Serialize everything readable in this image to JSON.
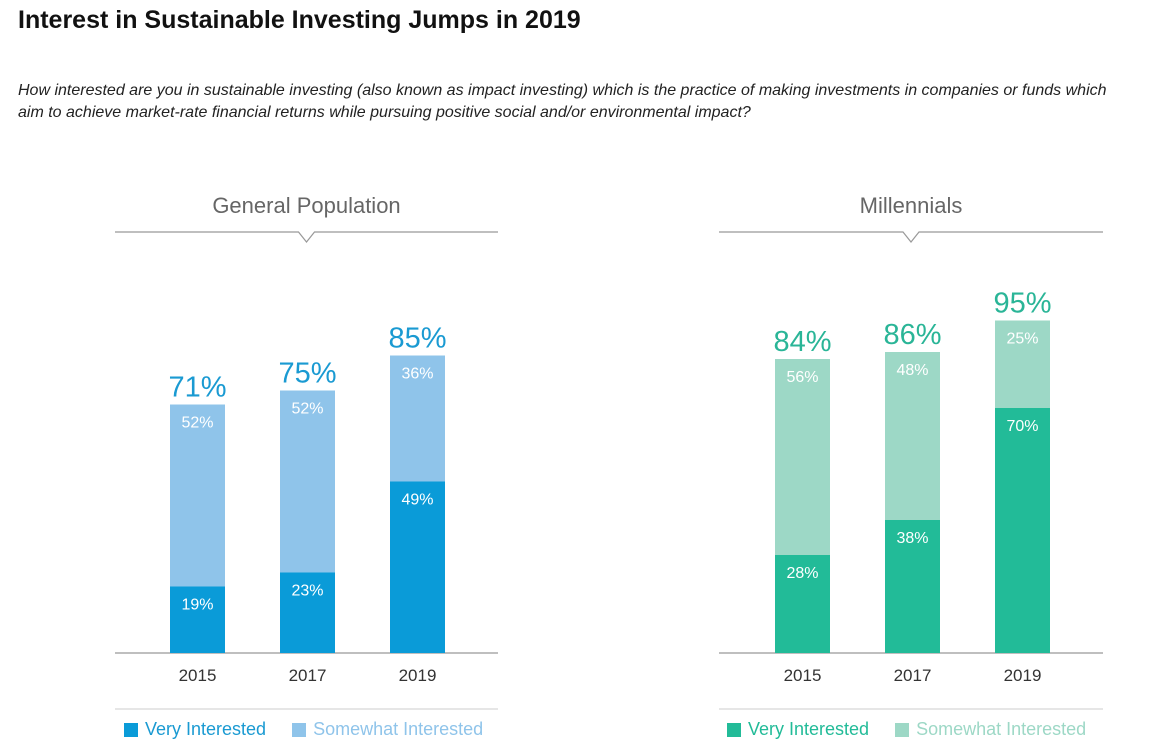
{
  "title": "Interest in Sustainable Investing Jumps in 2019",
  "subtitle": "How interested are you in sustainable investing (also known as impact investing) which is the practice of making investments in companies or funds which aim to achieve market-rate financial returns while pursuing positive social and/or environmental impact?",
  "colors": {
    "gp_very": "#0a9bd8",
    "gp_somewhat": "#8fc4ea",
    "gp_total_text": "#1a9ad2",
    "mil_very": "#22bb98",
    "mil_somewhat": "#9dd8c6",
    "mil_total_text": "#2ab597",
    "axis": "#999999",
    "panel_label": "#666666"
  },
  "chart_data": [
    {
      "type": "bar",
      "stacked": true,
      "title": "General Population",
      "categories": [
        "2015",
        "2017",
        "2019"
      ],
      "series": [
        {
          "name": "Very Interested",
          "values": [
            19,
            23,
            49
          ],
          "labels": [
            "19%",
            "23%",
            "49%"
          ]
        },
        {
          "name": "Somewhat Interested",
          "values": [
            52,
            52,
            36
          ],
          "labels": [
            "52%",
            "52%",
            "36%"
          ]
        }
      ],
      "totals": [
        71,
        75,
        85
      ],
      "total_labels": [
        "71%",
        "75%",
        "85%"
      ],
      "ylim": [
        0,
        100
      ],
      "grid": false,
      "legend": "bottom"
    },
    {
      "type": "bar",
      "stacked": true,
      "title": "Millennials",
      "categories": [
        "2015",
        "2017",
        "2019"
      ],
      "series": [
        {
          "name": "Very Interested",
          "values": [
            28,
            38,
            70
          ],
          "labels": [
            "28%",
            "38%",
            "70%"
          ]
        },
        {
          "name": "Somewhat Interested",
          "values": [
            56,
            48,
            25
          ],
          "labels": [
            "56%",
            "48%",
            "25%"
          ]
        }
      ],
      "totals": [
        84,
        86,
        95
      ],
      "total_labels": [
        "84%",
        "86%",
        "95%"
      ],
      "ylim": [
        0,
        100
      ],
      "grid": false,
      "legend": "bottom"
    }
  ]
}
